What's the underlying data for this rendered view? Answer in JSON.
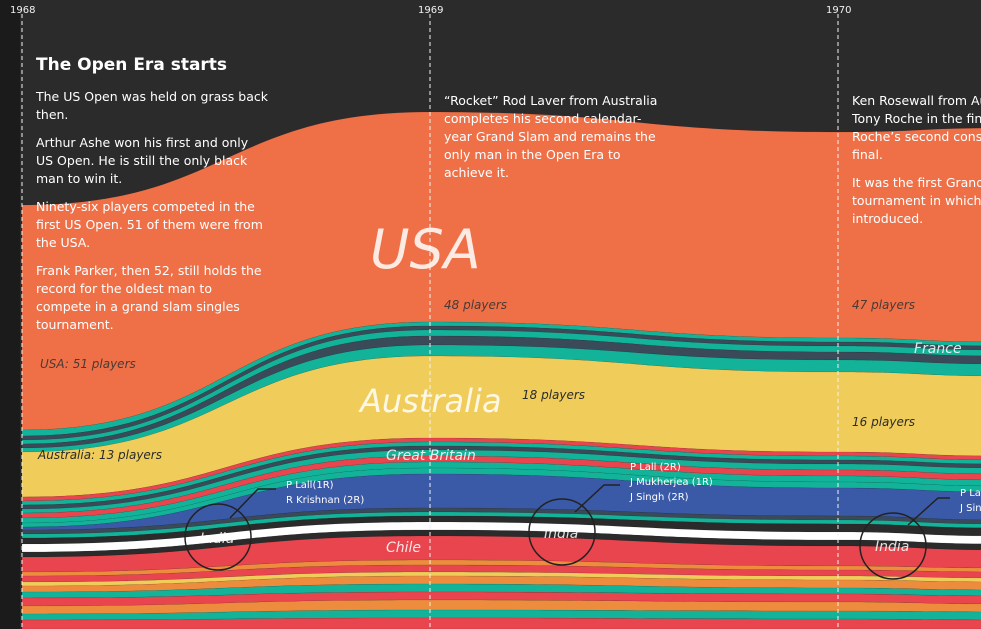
{
  "timeline": {
    "years": [
      "1968",
      "1969",
      "1970"
    ]
  },
  "annotations": [
    {
      "title": "The Open Era starts",
      "paragraphs": [
        "The US Open was held on grass back then.",
        "Arthur Ashe won his first and only US Open. He is still the only black man to win it.",
        "Ninety-six players competed in the first US Open. 51 of them were from the USA.",
        "Frank Parker, then 52, still holds the record for the oldest man to compete in a grand slam singles tournament."
      ]
    },
    {
      "title": "",
      "paragraphs": [
        "“Rocket” Rod Laver from Australia completes his second calendar-year Grand Slam and remains the only man in the Open Era to achieve it."
      ]
    },
    {
      "title": "",
      "paragraphs": [
        "Ken Rosewall from Au",
        "Tony Roche in the fina",
        "Roche’s second conse",
        "final.",
        "It was the first Grand",
        "tournament in which",
        "introduced."
      ]
    }
  ],
  "labels": {
    "usa_big": "USA",
    "australia_big": "Australia",
    "great_britain": "Great Britain",
    "chile": "Chile",
    "france": "France",
    "india": "India"
  },
  "count_labels": {
    "usa_1968": "USA: 51 players",
    "australia_1968": "Australia: 13 players",
    "usa_1969": "48 players",
    "australia_1969": "18 players",
    "usa_1970": "47 players",
    "australia_1970": "16 players"
  },
  "india_players": {
    "y1968": [
      "P Lall(1R)",
      "R Krishnan (2R)"
    ],
    "y1969": [
      "P Lall (2R)",
      "J Mukherjea (1R)",
      "J Singh (2R)"
    ],
    "y1970": [
      "P La",
      "J Sin"
    ]
  },
  "colors": {
    "background": "#2b2b2b",
    "usa": "#ef7047",
    "australia": "#f0cd5b",
    "teal": "#13b39a",
    "red": "#e8454e",
    "blue": "#3a5aa8",
    "white": "#ffffff",
    "orange": "#ee8c3e"
  },
  "chart_data": {
    "type": "area",
    "x": [
      "1968",
      "1969",
      "1970"
    ],
    "series": [
      {
        "name": "USA",
        "values": [
          51,
          48,
          47
        ]
      },
      {
        "name": "Australia",
        "values": [
          13,
          18,
          16
        ]
      }
    ]
  }
}
